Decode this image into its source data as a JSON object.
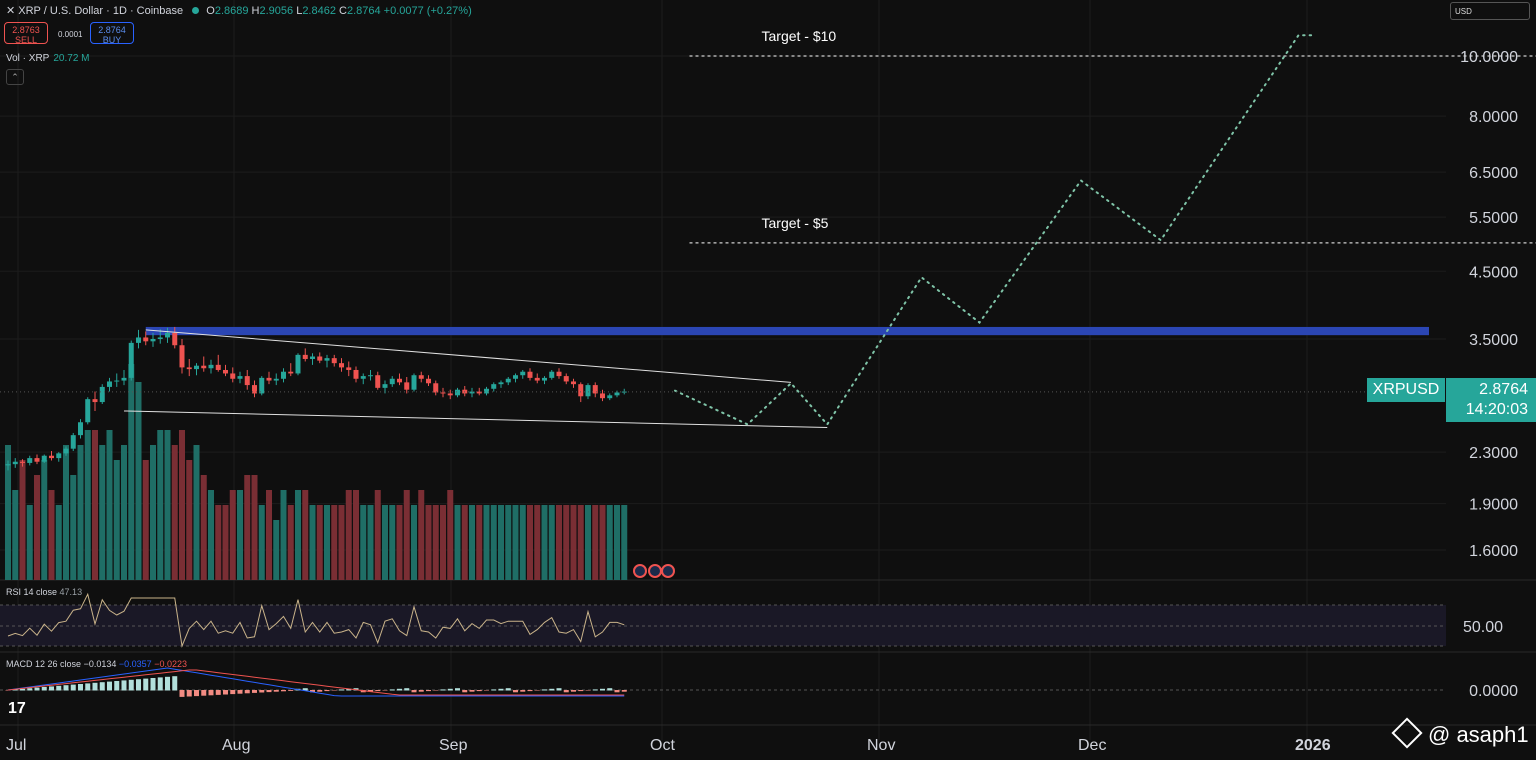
{
  "header": {
    "symbol_line": "XRP / U.S. Dollar · 1D · Coinbase",
    "ohlc": [
      {
        "k": "O",
        "v": "2.8689"
      },
      {
        "k": "H",
        "v": "2.9056"
      },
      {
        "k": "L",
        "v": "2.8462"
      },
      {
        "k": "C",
        "v": "2.8764"
      }
    ],
    "change": "+0.0077 (+0.27%)",
    "close_icon": "close-icon",
    "status_icon": "market-open-dot"
  },
  "trade": {
    "sell_price": "2.8763",
    "sell_label": "SELL",
    "spread": "0.0001",
    "buy_price": "2.8764",
    "buy_label": "BUY"
  },
  "volume_label": {
    "name": "Vol · XRP",
    "value": "20.72 M"
  },
  "currency_selector": "USD",
  "price_tag": {
    "symbol": "XRPUSD",
    "price": "2.8764",
    "countdown": "14:20:03"
  },
  "rsi_label": {
    "name": "RSI 14 close",
    "value": "47.13"
  },
  "macd_label": {
    "name": "MACD 12 26 close",
    "v1": "−0.0134",
    "v2": "−0.0357",
    "v3": "−0.0223"
  },
  "watermark": "@ asaph1",
  "logo_text": "17",
  "colors": {
    "up": "#26a69a",
    "down": "#ef5350",
    "resistance_zone": "#2b46b4",
    "projection": "#7fc4a8",
    "rsi_line": "#c9b38a",
    "macd_line": "#2962ff",
    "signal_line": "#ef5350"
  },
  "chart_data": {
    "type": "candlestick",
    "scale": "log",
    "price_axis": [
      "10.0000",
      "8.0000",
      "6.5000",
      "5.5000",
      "4.5000",
      "3.5000",
      "2.3000",
      "1.9000",
      "1.6000"
    ],
    "time_axis": [
      "Jul",
      "Aug",
      "Sep",
      "Oct",
      "Nov",
      "Dec",
      "2026"
    ],
    "ohlc_daily": [
      [
        2.19,
        2.23,
        2.15,
        2.2
      ],
      [
        2.2,
        2.25,
        2.17,
        2.22
      ],
      [
        2.22,
        2.24,
        2.18,
        2.21
      ],
      [
        2.21,
        2.27,
        2.19,
        2.25
      ],
      [
        2.25,
        2.28,
        2.2,
        2.22
      ],
      [
        2.22,
        2.28,
        2.21,
        2.27
      ],
      [
        2.27,
        2.31,
        2.23,
        2.25
      ],
      [
        2.25,
        2.3,
        2.22,
        2.29
      ],
      [
        2.29,
        2.35,
        2.27,
        2.33
      ],
      [
        2.33,
        2.47,
        2.31,
        2.45
      ],
      [
        2.45,
        2.6,
        2.42,
        2.57
      ],
      [
        2.57,
        2.82,
        2.55,
        2.8
      ],
      [
        2.8,
        2.88,
        2.68,
        2.77
      ],
      [
        2.77,
        2.96,
        2.75,
        2.93
      ],
      [
        2.93,
        3.03,
        2.88,
        2.99
      ],
      [
        2.99,
        3.08,
        2.93,
        3.0
      ],
      [
        3.0,
        3.12,
        2.95,
        3.03
      ],
      [
        3.03,
        3.48,
        3.0,
        3.45
      ],
      [
        3.45,
        3.62,
        3.38,
        3.52
      ],
      [
        3.52,
        3.6,
        3.42,
        3.47
      ],
      [
        3.47,
        3.58,
        3.4,
        3.5
      ],
      [
        3.5,
        3.63,
        3.44,
        3.52
      ],
      [
        3.52,
        3.65,
        3.45,
        3.58
      ],
      [
        3.58,
        3.66,
        3.38,
        3.42
      ],
      [
        3.42,
        3.5,
        3.08,
        3.15
      ],
      [
        3.15,
        3.25,
        3.05,
        3.13
      ],
      [
        3.13,
        3.2,
        3.06,
        3.17
      ],
      [
        3.17,
        3.28,
        3.1,
        3.14
      ],
      [
        3.14,
        3.24,
        3.08,
        3.18
      ],
      [
        3.18,
        3.3,
        3.1,
        3.12
      ],
      [
        3.12,
        3.18,
        3.05,
        3.08
      ],
      [
        3.08,
        3.15,
        2.98,
        3.02
      ],
      [
        3.02,
        3.1,
        2.97,
        3.05
      ],
      [
        3.05,
        3.12,
        2.9,
        2.95
      ],
      [
        2.95,
        3.0,
        2.82,
        2.86
      ],
      [
        2.86,
        3.05,
        2.84,
        3.03
      ],
      [
        3.03,
        3.1,
        2.96,
        3.0
      ],
      [
        3.0,
        3.08,
        2.95,
        3.02
      ],
      [
        3.02,
        3.14,
        2.98,
        3.1
      ],
      [
        3.1,
        3.2,
        3.05,
        3.08
      ],
      [
        3.08,
        3.32,
        3.06,
        3.3
      ],
      [
        3.3,
        3.38,
        3.22,
        3.25
      ],
      [
        3.25,
        3.32,
        3.18,
        3.28
      ],
      [
        3.28,
        3.33,
        3.2,
        3.23
      ],
      [
        3.23,
        3.3,
        3.15,
        3.26
      ],
      [
        3.26,
        3.3,
        3.16,
        3.2
      ],
      [
        3.2,
        3.26,
        3.1,
        3.15
      ],
      [
        3.15,
        3.22,
        3.05,
        3.12
      ],
      [
        3.12,
        3.16,
        2.98,
        3.02
      ],
      [
        3.02,
        3.08,
        2.96,
        3.05
      ],
      [
        3.05,
        3.12,
        3.0,
        3.06
      ],
      [
        3.06,
        3.1,
        2.9,
        2.92
      ],
      [
        2.92,
        3.0,
        2.86,
        2.96
      ],
      [
        2.96,
        3.05,
        2.93,
        3.02
      ],
      [
        3.02,
        3.08,
        2.95,
        2.98
      ],
      [
        2.98,
        3.04,
        2.86,
        2.9
      ],
      [
        2.9,
        3.08,
        2.88,
        3.06
      ],
      [
        3.06,
        3.1,
        2.98,
        3.02
      ],
      [
        3.02,
        3.06,
        2.94,
        2.97
      ],
      [
        2.97,
        3.0,
        2.84,
        2.87
      ],
      [
        2.87,
        2.92,
        2.82,
        2.86
      ],
      [
        2.86,
        2.9,
        2.8,
        2.84
      ],
      [
        2.84,
        2.92,
        2.82,
        2.9
      ],
      [
        2.9,
        2.94,
        2.83,
        2.86
      ],
      [
        2.86,
        2.92,
        2.82,
        2.88
      ],
      [
        2.88,
        2.92,
        2.84,
        2.86
      ],
      [
        2.86,
        2.93,
        2.84,
        2.91
      ],
      [
        2.91,
        2.98,
        2.88,
        2.96
      ],
      [
        2.96,
        3.0,
        2.92,
        2.98
      ],
      [
        2.98,
        3.04,
        2.95,
        3.02
      ],
      [
        3.02,
        3.08,
        2.98,
        3.06
      ],
      [
        3.06,
        3.12,
        3.02,
        3.1
      ],
      [
        3.1,
        3.14,
        3.0,
        3.03
      ],
      [
        3.03,
        3.08,
        2.97,
        3.0
      ],
      [
        3.0,
        3.05,
        2.96,
        3.03
      ],
      [
        3.03,
        3.12,
        3.01,
        3.1
      ],
      [
        3.1,
        3.14,
        3.02,
        3.05
      ],
      [
        3.05,
        3.08,
        2.96,
        2.99
      ],
      [
        2.99,
        3.02,
        2.92,
        2.96
      ],
      [
        2.96,
        2.98,
        2.77,
        2.83
      ],
      [
        2.83,
        2.97,
        2.8,
        2.95
      ],
      [
        2.95,
        2.98,
        2.82,
        2.86
      ],
      [
        2.86,
        2.9,
        2.78,
        2.81
      ],
      [
        2.81,
        2.86,
        2.79,
        2.84
      ],
      [
        2.84,
        2.89,
        2.82,
        2.87
      ],
      [
        2.87,
        2.91,
        2.85,
        2.88
      ]
    ],
    "volume_daily": [
      0.9,
      0.6,
      0.8,
      0.5,
      0.7,
      0.8,
      0.6,
      0.5,
      0.9,
      0.7,
      0.9,
      1.0,
      1.0,
      0.9,
      1.0,
      0.8,
      0.9,
      1.2,
      1.1,
      0.8,
      0.9,
      1.0,
      1.0,
      0.9,
      1.0,
      0.8,
      0.9,
      0.7,
      0.6,
      0.5,
      0.5,
      0.6,
      0.6,
      0.7,
      0.7,
      0.5,
      0.6,
      0.4,
      0.6,
      0.5,
      0.6,
      0.6,
      0.5,
      0.5,
      0.5,
      0.5,
      0.5,
      0.6,
      0.6,
      0.5,
      0.5,
      0.6,
      0.5,
      0.5,
      0.5,
      0.6,
      0.5,
      0.6,
      0.5,
      0.5,
      0.5,
      0.6,
      0.5,
      0.5,
      0.5,
      0.5,
      0.5,
      0.5,
      0.5,
      0.5,
      0.5,
      0.5,
      0.5,
      0.5,
      0.5,
      0.5,
      0.5,
      0.5,
      0.5,
      0.5,
      0.5,
      0.5,
      0.5,
      0.5,
      0.5,
      0.5
    ],
    "channel": {
      "upper": {
        "start_day": 19,
        "start_price": 3.62,
        "end_day": 108,
        "end_price": 2.98
      },
      "lower": {
        "start_day": 16,
        "start_price": 2.68,
        "end_day": 113,
        "end_price": 2.52
      }
    },
    "resistance_zone": {
      "from_day": 19,
      "to_day": 196,
      "low": 3.55,
      "high": 3.66
    },
    "targets": [
      {
        "label": "Target - $10",
        "price": 10.0,
        "from_day": 94,
        "to_day": 213
      },
      {
        "label": "Target - $5",
        "price": 5.0,
        "from_day": 94,
        "to_day": 213
      }
    ],
    "projection_path": [
      [
        92,
        2.89
      ],
      [
        102,
        2.55
      ],
      [
        108,
        2.97
      ],
      [
        113,
        2.55
      ],
      [
        126,
        4.4
      ],
      [
        134,
        3.72
      ],
      [
        148,
        6.3
      ],
      [
        159,
        5.05
      ],
      [
        178,
        10.8
      ],
      [
        180,
        10.8
      ]
    ],
    "rsi_axis": [
      "50.00"
    ],
    "macd_axis": [
      "0.0000"
    ]
  }
}
